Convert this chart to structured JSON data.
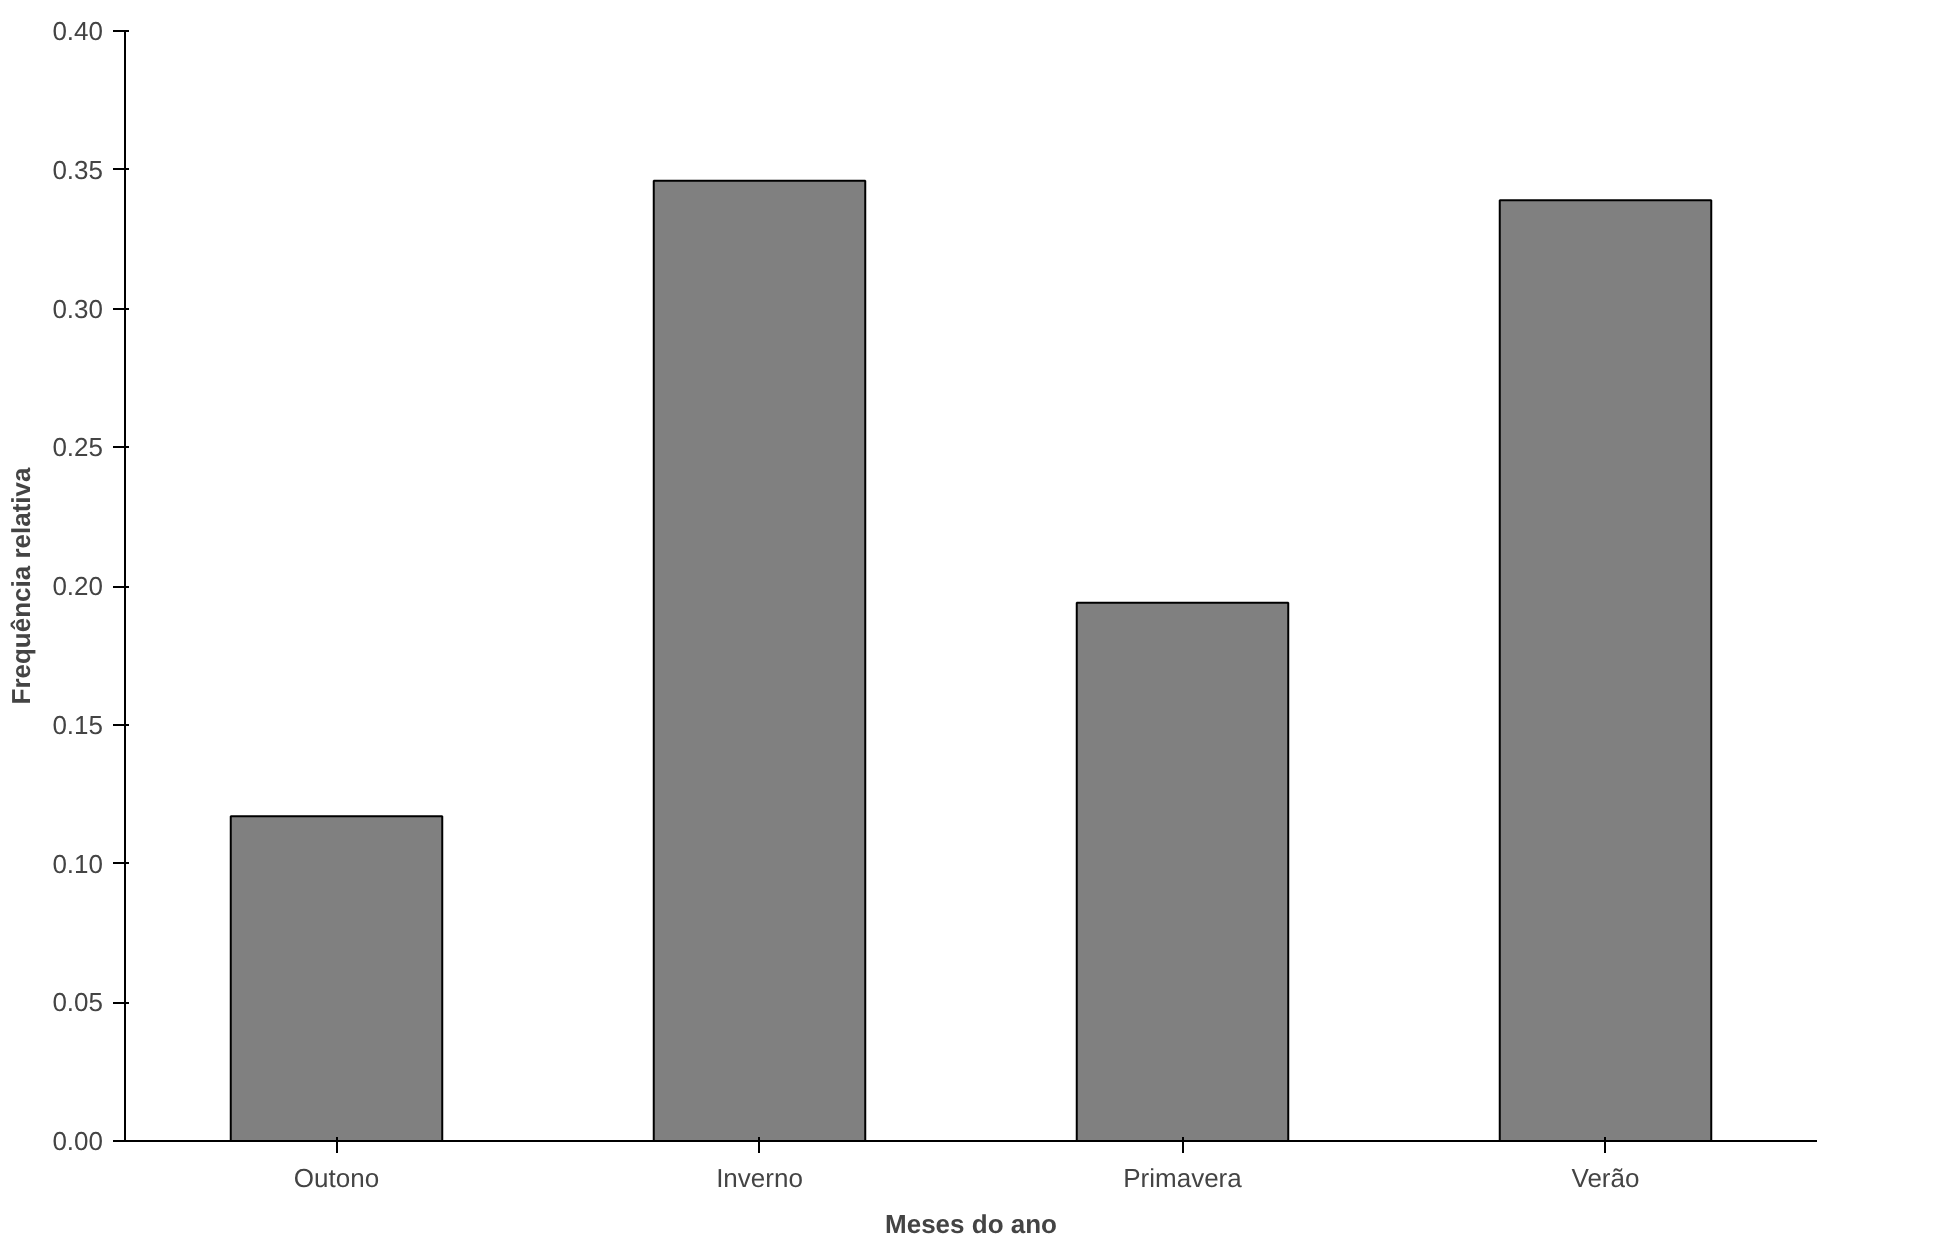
{
  "chart_data": {
    "type": "bar",
    "xlabel": "Meses do ano",
    "ylabel": "Frequência relativa",
    "categories": [
      "Outono",
      "Inverno",
      "Primavera",
      "Verão"
    ],
    "values": [
      0.117,
      0.346,
      0.194,
      0.339
    ],
    "color": "#808080",
    "ylim": [
      0,
      0.4
    ],
    "yticks": [
      {
        "value": 0,
        "label": "0.00"
      },
      {
        "value": 0.05,
        "label": "0.05"
      },
      {
        "value": 0.1,
        "label": "0.10"
      },
      {
        "value": 0.15,
        "label": "0.15"
      },
      {
        "value": 0.2,
        "label": "0.20"
      },
      {
        "value": 0.25,
        "label": "0.25"
      },
      {
        "value": 0.3,
        "label": "0.30"
      },
      {
        "value": 0.35,
        "label": "0.35"
      },
      {
        "value": 0.4,
        "label": "0.40"
      }
    ],
    "grid": false
  }
}
